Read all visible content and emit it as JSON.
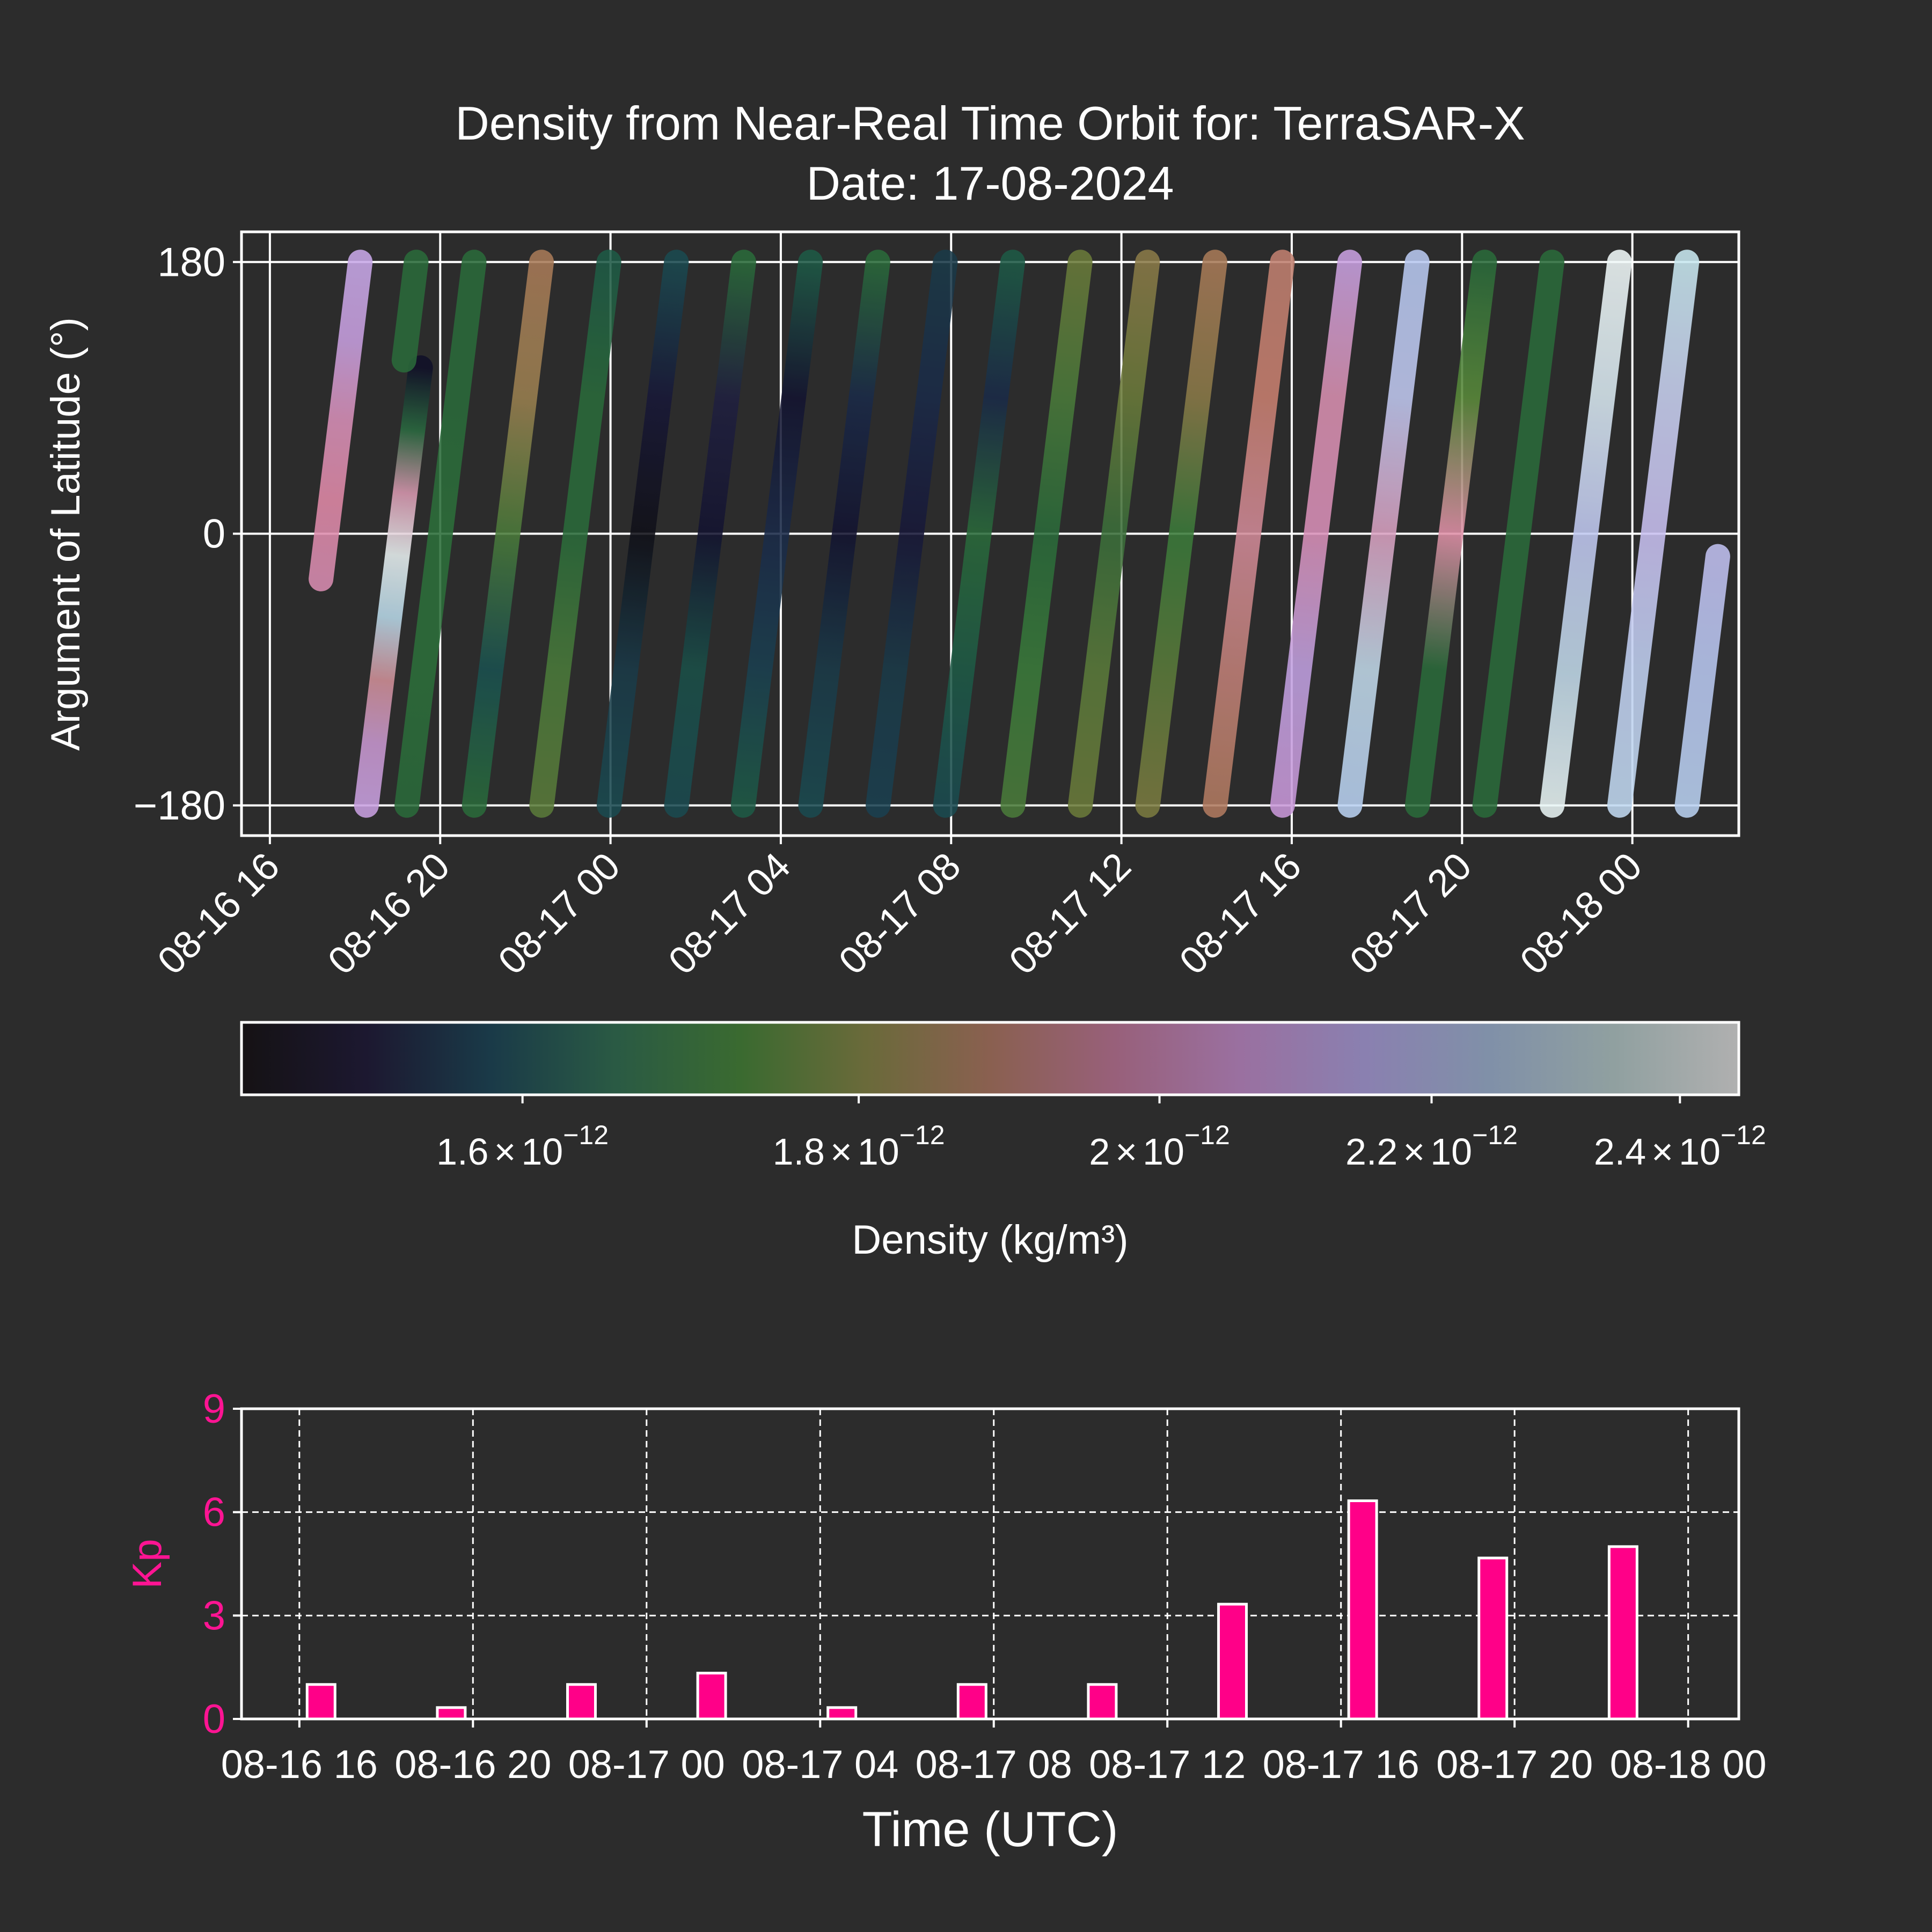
{
  "colors": {
    "background": "#2c2c2c",
    "axes": "#ffffff",
    "kp_bar": "#ff0088",
    "kp_label": "#ff1493"
  },
  "chart_data": [
    {
      "type": "scatter",
      "title_line1": "Density from Near-Real Time Orbit for: TerraSAR-X",
      "title_line2": "Date: 17-08-2024",
      "xlabel": "",
      "ylabel": "Argument of Latitude (°)",
      "xlim": [
        "2024-08-16 15:20",
        "2024-08-18 02:30"
      ],
      "ylim": [
        -200,
        200
      ],
      "yticks": [
        180,
        0,
        -180
      ],
      "ytick_labels": [
        "180",
        "0",
        "−180"
      ],
      "xticks": [
        "2024-08-16 16:00",
        "2024-08-16 20:00",
        "2024-08-17 00:00",
        "2024-08-17 04:00",
        "2024-08-17 08:00",
        "2024-08-17 12:00",
        "2024-08-17 16:00",
        "2024-08-17 20:00",
        "2024-08-18 00:00"
      ],
      "xtick_labels": [
        "08-16 16",
        "08-16 20",
        "08-17 00",
        "08-17 04",
        "08-17 08",
        "08-17 12",
        "08-17 16",
        "08-17 20",
        "08-18 00"
      ],
      "grid": true,
      "colormap": "cubehelix",
      "color_scale": "log",
      "orbit_period_min": 94.8,
      "passes": [
        {
          "start": "2024-08-16 17:12",
          "arg_start": -30,
          "arg_end": 180,
          "colors": [
            "#d88cb0",
            "#e08aa8",
            "#d890b8",
            "#c8a0e0",
            "#c8a8e8"
          ]
        },
        {
          "start": "2024-08-16 18:16",
          "arg_start": -180,
          "arg_end": 110,
          "colors": [
            "#c8a0e0",
            "#c898d0",
            "#d09098",
            "#b8d8e8",
            "#e8f0f0",
            "#d898b0",
            "#2a6a40",
            "#101028"
          ]
        },
        {
          "start": "2024-08-16 19:09",
          "arg_start": 115,
          "arg_end": 180,
          "colors": [
            "#2a6a3a",
            "#2a6a3a"
          ]
        },
        {
          "start": "2024-08-16 19:13",
          "arg_start": -180,
          "arg_end": 180,
          "colors": [
            "#2a6a3a",
            "#2c6e3a",
            "#2c6e3a",
            "#2a6a3a",
            "#2a6a3a"
          ]
        },
        {
          "start": "2024-08-16 20:48",
          "arg_start": -180,
          "arg_end": 180,
          "colors": [
            "#2a6a3a",
            "#1a5050",
            "#4a7a3a",
            "#9a8050",
            "#a87a58"
          ]
        },
        {
          "start": "2024-08-16 22:23",
          "arg_start": -180,
          "arg_end": 180,
          "colors": [
            "#5a7a3a",
            "#4a7a3a",
            "#2a6a3a",
            "#2a6a3a",
            "#1e5a46"
          ]
        },
        {
          "start": "2024-08-16 23:58",
          "arg_start": -180,
          "arg_end": 180,
          "colors": [
            "#1a4a50",
            "#1a3a48",
            "#101018",
            "#181838",
            "#1a4a50"
          ]
        },
        {
          "start": "2024-08-17 01:33",
          "arg_start": -180,
          "arg_end": 180,
          "colors": [
            "#1a4a50",
            "#1a5048",
            "#141430",
            "#202040",
            "#2a6a3a"
          ]
        },
        {
          "start": "2024-08-17 03:07",
          "arg_start": -180,
          "arg_end": 180,
          "colors": [
            "#1e5a46",
            "#1a4050",
            "#1a2a48",
            "#141430",
            "#1e5a46"
          ]
        },
        {
          "start": "2024-08-17 04:42",
          "arg_start": -180,
          "arg_end": 180,
          "colors": [
            "#1a4a50",
            "#1a3a48",
            "#141430",
            "#1a2a48",
            "#2a6a3a"
          ]
        },
        {
          "start": "2024-08-17 06:17",
          "arg_start": -180,
          "arg_end": 180,
          "colors": [
            "#1a4050",
            "#1a3a48",
            "#181838",
            "#1a2a48",
            "#1a3a48"
          ]
        },
        {
          "start": "2024-08-17 07:52",
          "arg_start": -180,
          "arg_end": 180,
          "colors": [
            "#1a4a50",
            "#1e5a46",
            "#2a6a3a",
            "#1a2a48",
            "#1e5a46"
          ]
        },
        {
          "start": "2024-08-17 09:27",
          "arg_start": -180,
          "arg_end": 180,
          "colors": [
            "#4a7a3a",
            "#3a7a3a",
            "#2a6a3a",
            "#4a7a3a",
            "#6a7a3a"
          ]
        },
        {
          "start": "2024-08-17 11:02",
          "arg_start": -180,
          "arg_end": 180,
          "colors": [
            "#6a7a3a",
            "#5a7a3a",
            "#3a6e3a",
            "#6a7a3a",
            "#8a7a48"
          ]
        },
        {
          "start": "2024-08-17 12:37",
          "arg_start": -180,
          "arg_end": 180,
          "colors": [
            "#7a7a40",
            "#5a7a3a",
            "#3a7a3a",
            "#8a7a48",
            "#a87a58"
          ]
        },
        {
          "start": "2024-08-17 14:12",
          "arg_start": -180,
          "arg_end": 180,
          "colors": [
            "#b07a60",
            "#c08078",
            "#d08a98",
            "#c88070",
            "#c08070"
          ]
        },
        {
          "start": "2024-08-17 15:47",
          "arg_start": -180,
          "arg_end": 180,
          "colors": [
            "#c898d8",
            "#c0a0e0",
            "#d890b8",
            "#d890b0",
            "#c8a0e0"
          ]
        },
        {
          "start": "2024-08-17 17:22",
          "arg_start": -180,
          "arg_end": 180,
          "colors": [
            "#b8d0f0",
            "#c0d8e8",
            "#d8a0c0",
            "#c0c8f0",
            "#b8c8f0"
          ]
        },
        {
          "start": "2024-08-17 18:57",
          "arg_start": -180,
          "arg_end": 180,
          "colors": [
            "#2a6a3a",
            "#2a6a3a",
            "#e090a8",
            "#5a8a3a",
            "#2a6a3a"
          ]
        },
        {
          "start": "2024-08-17 20:32",
          "arg_start": -180,
          "arg_end": 180,
          "colors": [
            "#2a6a3a",
            "#2a6a3a",
            "#2a6a3a",
            "#2a6a3a",
            "#2a6a3a"
          ]
        },
        {
          "start": "2024-08-17 22:07",
          "arg_start": -180,
          "arg_end": 180,
          "colors": [
            "#e8f4f4",
            "#c0d8e8",
            "#c0c8f0",
            "#d8e8f0",
            "#f0f8f8"
          ]
        },
        {
          "start": "2024-08-17 23:42",
          "arg_start": -180,
          "arg_end": 180,
          "colors": [
            "#c0d8f0",
            "#c0d0f0",
            "#c8c0f0",
            "#c8d0f0",
            "#c8e8f0"
          ]
        },
        {
          "start": "2024-08-18 01:17",
          "arg_start": -180,
          "arg_end": -15,
          "colors": [
            "#b8d0f0",
            "#b8c8f0",
            "#c0c0f0"
          ]
        }
      ]
    },
    {
      "type": "colorbar",
      "label": "Density (kg/m³)",
      "scale": "log",
      "vmin": 1.45e-12,
      "vmax": 2.45e-12,
      "ticks": [
        1.6e-12,
        1.8e-12,
        2e-12,
        2.2e-12,
        2.4e-12
      ],
      "tick_mantissas": [
        "1.6",
        "1.8",
        "2",
        "2.2",
        "2.4"
      ],
      "tick_exponent": "−12",
      "times_sign": "×",
      "tick_base": "10",
      "gradient": [
        "#151214",
        "#1c1830",
        "#1a3a48",
        "#2a5a44",
        "#3a6a30",
        "#6a6a3a",
        "#8a6050",
        "#98607a",
        "#9a70a0",
        "#8a80b0",
        "#8090a8",
        "#90a0a0",
        "#b0b0b0"
      ]
    },
    {
      "type": "bar",
      "xlabel": "Time (UTC)",
      "ylabel": "Kp",
      "ylim": [
        0,
        9
      ],
      "yticks": [
        0,
        3,
        6,
        9
      ],
      "ytick_labels": [
        "0",
        "3",
        "6",
        "9"
      ],
      "xlim": [
        "2024-08-16 14:40",
        "2024-08-18 01:10"
      ],
      "xticks": [
        "2024-08-16 16:00",
        "2024-08-16 20:00",
        "2024-08-17 00:00",
        "2024-08-17 04:00",
        "2024-08-17 08:00",
        "2024-08-17 12:00",
        "2024-08-17 16:00",
        "2024-08-17 20:00",
        "2024-08-18 00:00"
      ],
      "xtick_labels": [
        "08-16 16",
        "08-16 20",
        "08-17 00",
        "08-17 04",
        "08-17 08",
        "08-17 12",
        "08-17 16",
        "08-17 20",
        "08-18 00"
      ],
      "grid": true,
      "x": [
        "2024-08-16 16:30",
        "2024-08-16 19:30",
        "2024-08-16 22:30",
        "2024-08-17 01:30",
        "2024-08-17 04:30",
        "2024-08-17 07:30",
        "2024-08-17 10:30",
        "2024-08-17 13:30",
        "2024-08-17 16:30",
        "2024-08-17 19:30",
        "2024-08-17 22:30"
      ],
      "values": [
        1.0,
        0.33,
        1.0,
        1.33,
        0.33,
        1.0,
        1.0,
        3.33,
        6.33,
        4.67,
        5.0
      ]
    }
  ]
}
